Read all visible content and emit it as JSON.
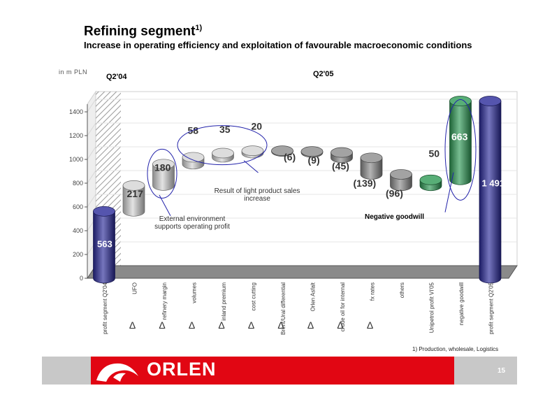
{
  "header": {
    "title": "Refining segment",
    "title_sup": "1)",
    "subtitle": "Increase in operating efficiency and exploitation of favourable macroeconomic conditions"
  },
  "chart_data": {
    "type": "bar",
    "unit_label": "in m PLN",
    "period_left": "Q2'04",
    "period_right": "Q2'05",
    "ylim": [
      0,
      1500
    ],
    "yticks": [
      "0",
      "200",
      "400",
      "600",
      "800",
      "1000",
      "1200",
      "1400"
    ],
    "categories": [
      {
        "label": "profit segment Q2'04",
        "delta": false
      },
      {
        "label": "UFO",
        "delta": true
      },
      {
        "label": "refinery margin",
        "delta": true
      },
      {
        "label": "volumes",
        "delta": true
      },
      {
        "label": "inland premium",
        "delta": true
      },
      {
        "label": "cost cutting",
        "delta": true
      },
      {
        "label": "Brent/Ural differential",
        "delta": true
      },
      {
        "label": "Orlen Asfalt",
        "delta": true
      },
      {
        "label": "crude oil for internal",
        "delta": true
      },
      {
        "label": "fx rates",
        "delta": true
      },
      {
        "label": "others",
        "delta": false
      },
      {
        "label": "Unipetrol profit VI'05",
        "delta": false
      },
      {
        "label": "negative goodwill",
        "delta": false
      },
      {
        "label": "profit segment Q2'05",
        "delta": false
      }
    ],
    "values": [
      563,
      217,
      180,
      58,
      35,
      20,
      -6,
      -9,
      -45,
      -139,
      -96,
      50,
      663,
      1491
    ],
    "value_labels": [
      "563",
      "217",
      "180",
      "58",
      "35",
      "20",
      "(6)",
      "(9)",
      "(45)",
      "(139)",
      "(96)",
      "50",
      "663",
      "1 491"
    ],
    "bar_kinds": [
      "total",
      "pos",
      "pos",
      "pos",
      "pos",
      "pos",
      "neg",
      "neg",
      "neg",
      "neg",
      "neg",
      "green",
      "green",
      "total"
    ],
    "colors": {
      "total": "#2a2a9a",
      "pos": "#d4d4d4",
      "neg": "#8c8c8c",
      "green": "#2e9a55",
      "circle": "#2222aa"
    },
    "annotations": {
      "external": "External environment supports operating profit",
      "light": "Result of light product sales increase",
      "negative_goodwill": "Negative goodwill"
    }
  },
  "footer": {
    "footnote": "1) Production, wholesale, Logistics",
    "brand": "ORLEN",
    "page": "15"
  }
}
